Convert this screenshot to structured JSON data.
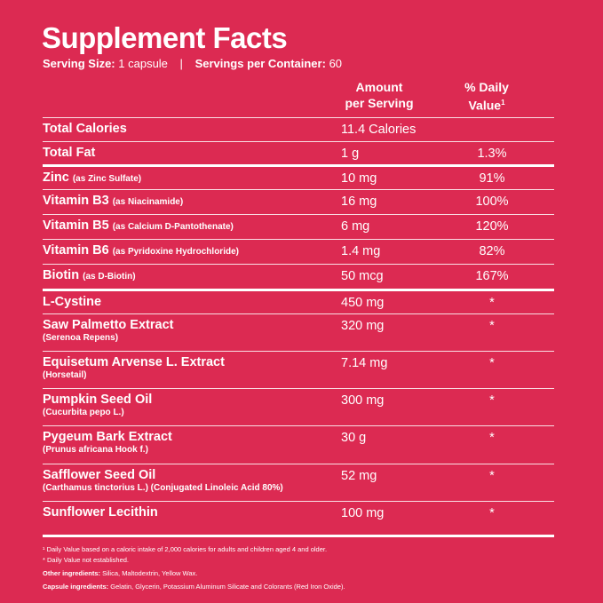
{
  "title": "Supplement Facts",
  "serving": {
    "size_label": "Serving Size:",
    "size_value": "1 capsule",
    "separator": "|",
    "per_container_label": "Servings per Container:",
    "per_container_value": "60"
  },
  "headers": {
    "amount_line1": "Amount",
    "amount_line2": "per Serving",
    "dv_line1": "% Daily",
    "dv_line2": "Value",
    "dv_sup": "1"
  },
  "rows": [
    {
      "name": "Total Calories",
      "sub": "",
      "amount": "11.4 Calories",
      "dv": ""
    },
    {
      "name": "Total Fat",
      "sub": "",
      "amount": "1 g",
      "dv": "1.3%"
    },
    {
      "name": "Zinc",
      "sub": "(as Zinc Sulfate)",
      "amount": "10 mg",
      "dv": "91%"
    },
    {
      "name": "Vitamin B3",
      "sub": "(as Niacinamide)",
      "amount": "16 mg",
      "dv": "100%"
    },
    {
      "name": "Vitamin B5",
      "sub": "(as Calcium D-Pantothenate)",
      "amount": "6 mg",
      "dv": "120%"
    },
    {
      "name": "Vitamin B6",
      "sub": "(as Pyridoxine Hydrochloride)",
      "amount": "1.4 mg",
      "dv": "82%"
    },
    {
      "name": "Biotin",
      "sub": "(as D-Biotin)",
      "amount": "50 mcg",
      "dv": "167%"
    },
    {
      "name": "L-Cystine",
      "sub": "",
      "amount": "450 mg",
      "dv": "*"
    },
    {
      "name": "Saw Palmetto Extract",
      "sub": "(Serenoa Repens)",
      "amount": "320 mg",
      "dv": "*"
    },
    {
      "name": "Equisetum Arvense L. Extract",
      "sub": "(Horsetail)",
      "amount": "7.14 mg",
      "dv": "*"
    },
    {
      "name": "Pumpkin Seed Oil",
      "sub": "(Cucurbita pepo L.)",
      "amount": "300 mg",
      "dv": "*"
    },
    {
      "name": "Pygeum Bark Extract",
      "sub": "(Prunus africana Hook f.)",
      "amount": "30 g",
      "dv": "*"
    },
    {
      "name": "Safflower Seed Oil",
      "sub": "(Carthamus tinctorius L.) (Conjugated Linoleic Acid 80%)",
      "amount": "52 mg",
      "dv": "*"
    },
    {
      "name": "Sunflower Lecithin",
      "sub": "",
      "amount": "100 mg",
      "dv": "*"
    }
  ],
  "footnotes": {
    "dv_note": "¹ Daily Value based on a caloric intake of 2,000 calories for adults and children aged 4 and older.",
    "not_established": "* Daily Value not established.",
    "other_label": "Other ingredients:",
    "other_value": " Silica, Maltodextrin, Yellow Wax.",
    "capsule_label": "Capsule ingredients:",
    "capsule_value": " Gelatin, Glycerin, Potassium Aluminum Silicate and Colorants (Red Iron Oxide)."
  },
  "colors": {
    "background": "#dc2a52",
    "text": "#ffffff"
  }
}
